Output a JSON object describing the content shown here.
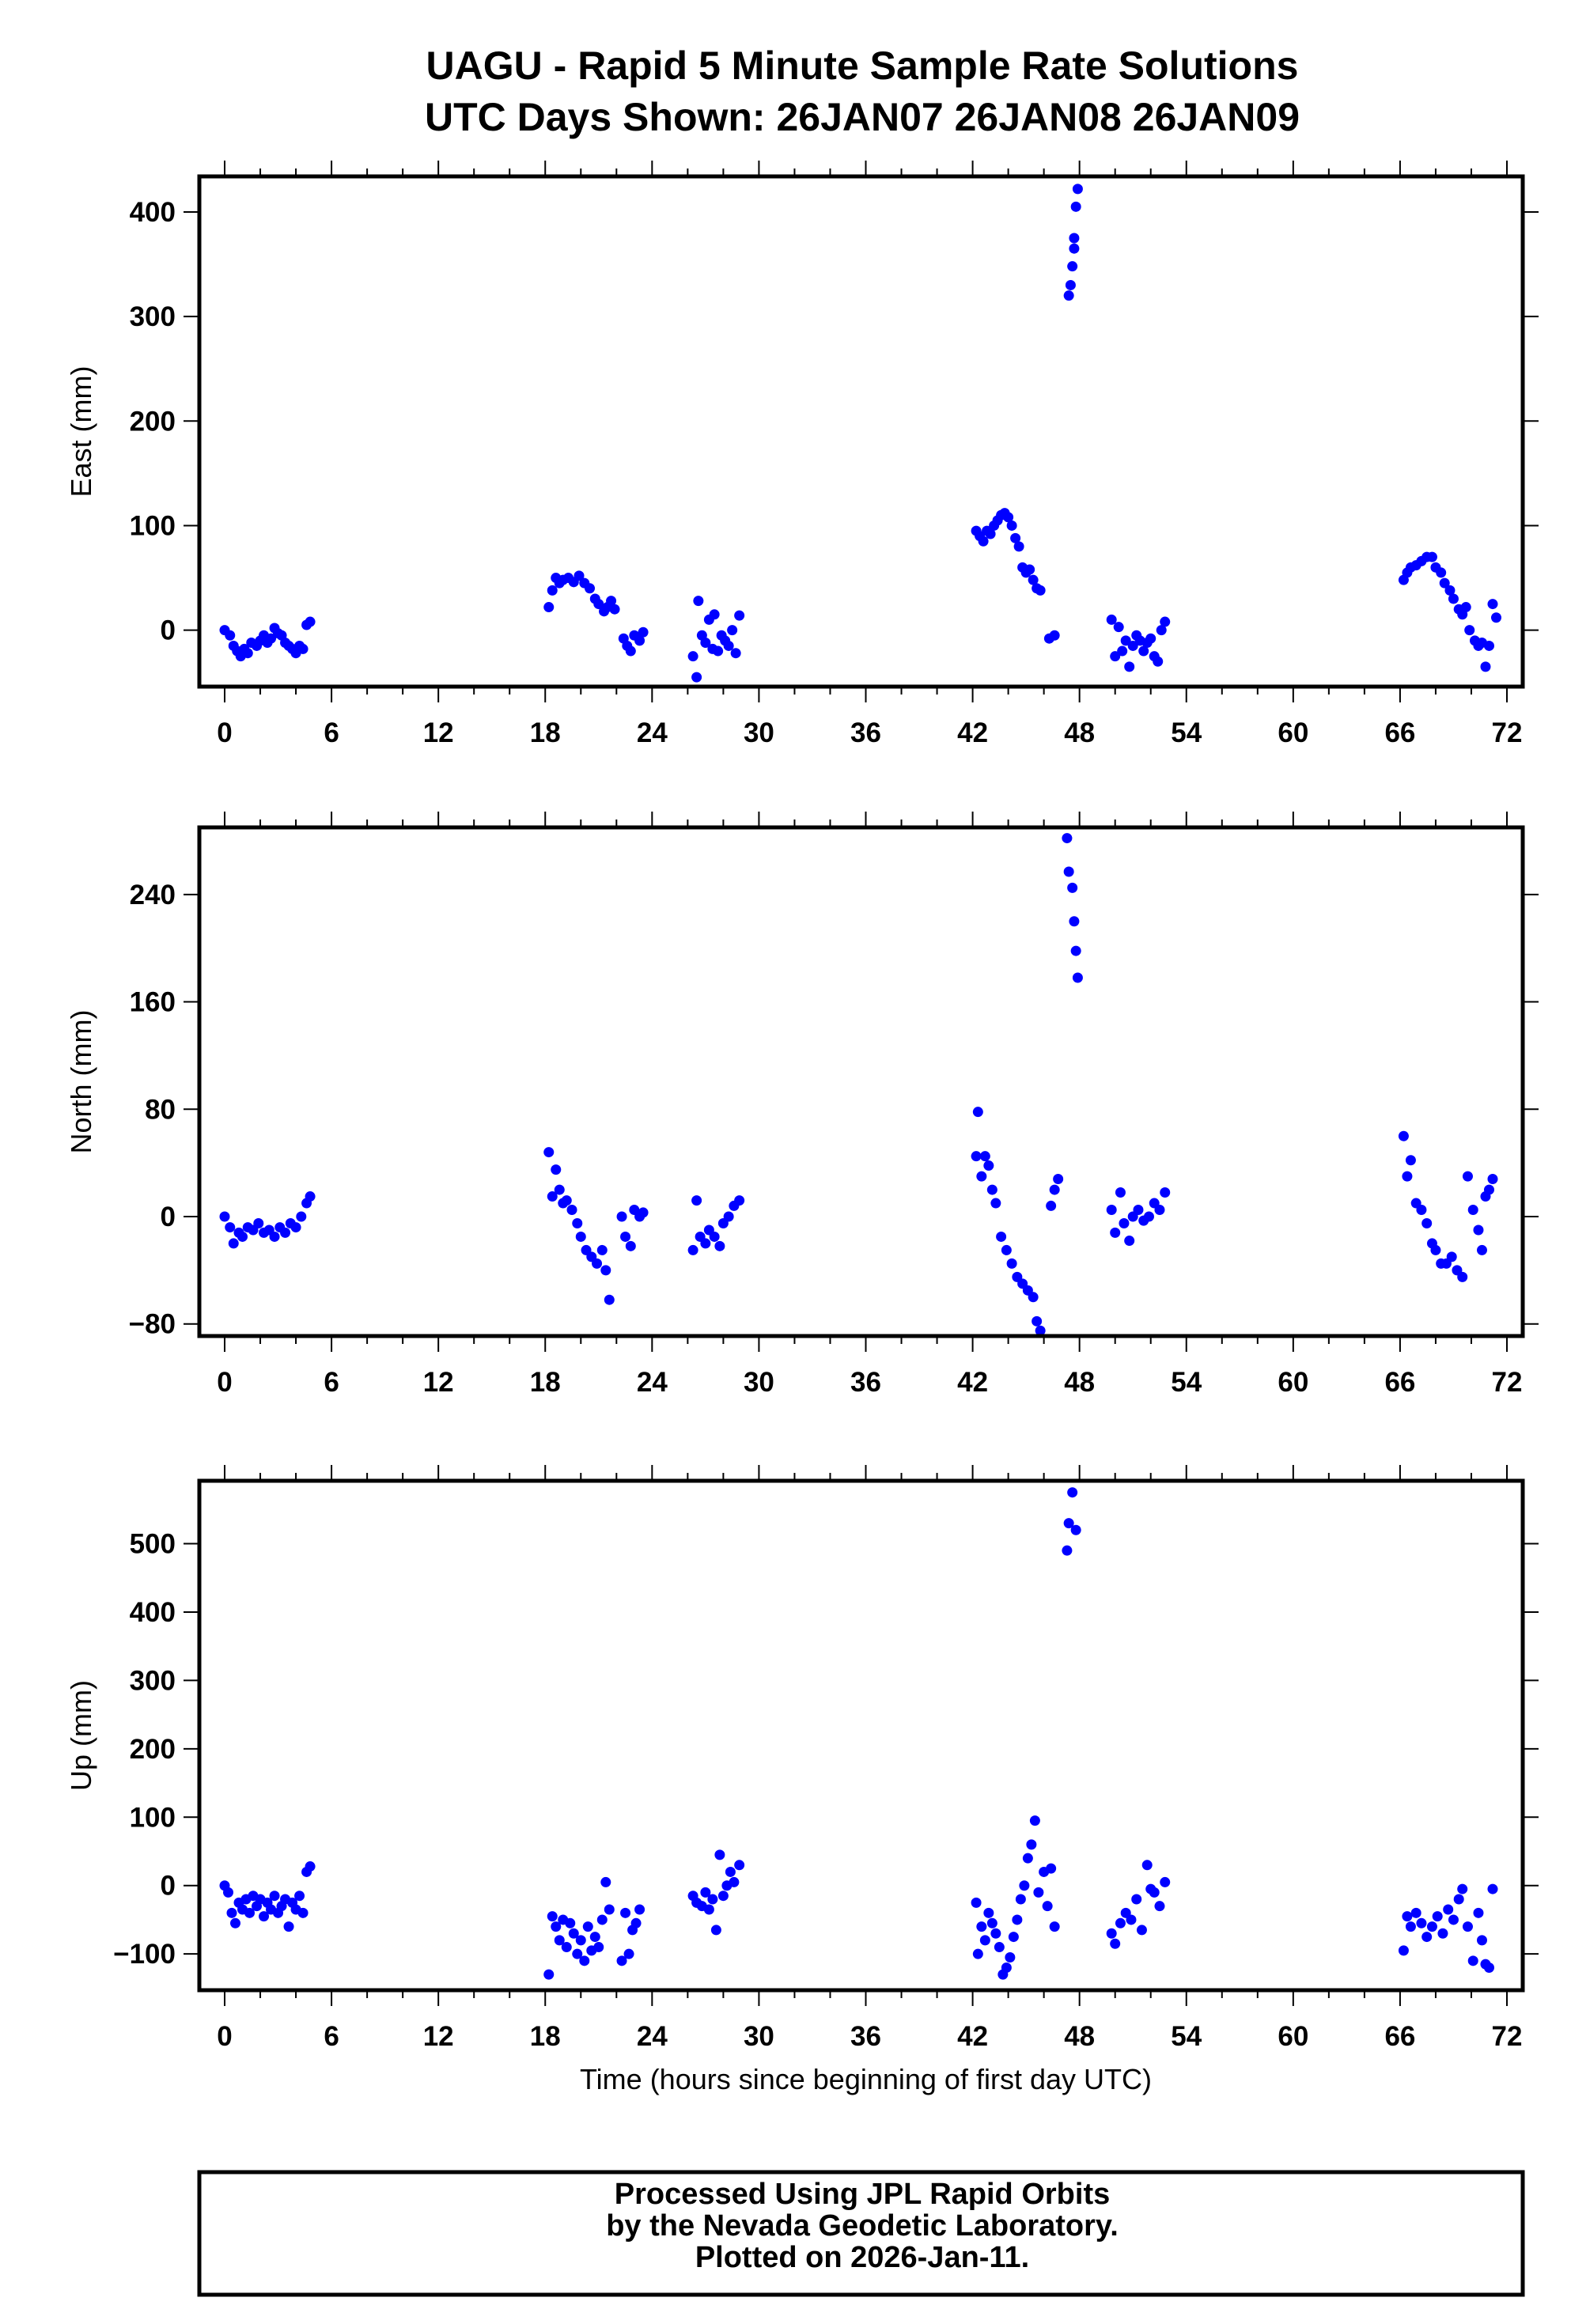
{
  "header": {
    "title_line1": "UAGU - Rapid 5 Minute Sample Rate Solutions",
    "title_line2": "UTC Days Shown:  26JAN07 26JAN08 26JAN09"
  },
  "footer": {
    "line1": "Processed Using JPL Rapid Orbits",
    "line2": "by the Nevada Geodetic Laboratory.",
    "line3": "Plotted on 2026-Jan-11."
  },
  "colors": {
    "points": "#0000ff",
    "axes": "#000000"
  },
  "chart_data": [
    {
      "type": "scatter",
      "title": "",
      "xlabel": "",
      "ylabel": "East (mm)",
      "xlim": [
        -1,
        73
      ],
      "ylim": [
        -54,
        434
      ],
      "xticks": [
        0,
        6,
        12,
        18,
        24,
        30,
        36,
        42,
        48,
        54,
        60,
        66,
        72
      ],
      "yticks": [
        0,
        100,
        200,
        300,
        400
      ],
      "points": [
        [
          0,
          0
        ],
        [
          0.3,
          -5
        ],
        [
          0.5,
          -15
        ],
        [
          0.7,
          -20
        ],
        [
          0.9,
          -25
        ],
        [
          1.1,
          -18
        ],
        [
          1.3,
          -22
        ],
        [
          1.5,
          -12
        ],
        [
          1.8,
          -15
        ],
        [
          2.0,
          -10
        ],
        [
          2.2,
          -5
        ],
        [
          2.4,
          -12
        ],
        [
          2.6,
          -8
        ],
        [
          2.8,
          2
        ],
        [
          3.0,
          -3
        ],
        [
          3.2,
          -5
        ],
        [
          3.4,
          -12
        ],
        [
          3.6,
          -15
        ],
        [
          3.8,
          -18
        ],
        [
          4.0,
          -22
        ],
        [
          4.2,
          -15
        ],
        [
          4.4,
          -18
        ],
        [
          4.6,
          5
        ],
        [
          4.8,
          8
        ],
        [
          18.2,
          22
        ],
        [
          18.4,
          38
        ],
        [
          18.6,
          50
        ],
        [
          18.8,
          45
        ],
        [
          19.0,
          48
        ],
        [
          19.3,
          50
        ],
        [
          19.6,
          46
        ],
        [
          19.9,
          52
        ],
        [
          20.2,
          45
        ],
        [
          20.5,
          40
        ],
        [
          20.8,
          30
        ],
        [
          21.0,
          25
        ],
        [
          21.3,
          18
        ],
        [
          21.5,
          22
        ],
        [
          21.7,
          28
        ],
        [
          21.9,
          20
        ],
        [
          22.4,
          -8
        ],
        [
          22.6,
          -15
        ],
        [
          22.8,
          -20
        ],
        [
          23.0,
          -5
        ],
        [
          23.3,
          -10
        ],
        [
          23.5,
          -2
        ],
        [
          26.3,
          -25
        ],
        [
          26.5,
          -45
        ],
        [
          26.6,
          28
        ],
        [
          26.8,
          -5
        ],
        [
          27.0,
          -12
        ],
        [
          27.2,
          10
        ],
        [
          27.4,
          -18
        ],
        [
          27.5,
          15
        ],
        [
          27.7,
          -20
        ],
        [
          27.9,
          -5
        ],
        [
          28.1,
          -10
        ],
        [
          28.3,
          -15
        ],
        [
          28.5,
          0
        ],
        [
          28.7,
          -22
        ],
        [
          28.9,
          14
        ],
        [
          42.2,
          95
        ],
        [
          42.4,
          90
        ],
        [
          42.6,
          85
        ],
        [
          42.8,
          95
        ],
        [
          43.0,
          92
        ],
        [
          43.2,
          100
        ],
        [
          43.4,
          105
        ],
        [
          43.6,
          110
        ],
        [
          43.8,
          112
        ],
        [
          44.0,
          108
        ],
        [
          44.2,
          100
        ],
        [
          44.4,
          88
        ],
        [
          44.6,
          80
        ],
        [
          44.8,
          60
        ],
        [
          45.0,
          55
        ],
        [
          45.2,
          58
        ],
        [
          45.4,
          48
        ],
        [
          45.6,
          40
        ],
        [
          45.8,
          38
        ],
        [
          46.3,
          -8
        ],
        [
          46.6,
          -5
        ],
        [
          47.4,
          320
        ],
        [
          47.5,
          330
        ],
        [
          47.6,
          348
        ],
        [
          47.7,
          365
        ],
        [
          47.7,
          375
        ],
        [
          47.8,
          405
        ],
        [
          47.9,
          422
        ],
        [
          49.8,
          10
        ],
        [
          50.0,
          -25
        ],
        [
          50.2,
          3
        ],
        [
          50.4,
          -20
        ],
        [
          50.6,
          -10
        ],
        [
          50.8,
          -35
        ],
        [
          51.0,
          -15
        ],
        [
          51.2,
          -5
        ],
        [
          51.4,
          -10
        ],
        [
          51.6,
          -20
        ],
        [
          51.8,
          -12
        ],
        [
          52.0,
          -8
        ],
        [
          52.2,
          -25
        ],
        [
          52.4,
          -30
        ],
        [
          52.6,
          0
        ],
        [
          52.8,
          8
        ],
        [
          66.2,
          48
        ],
        [
          66.4,
          55
        ],
        [
          66.6,
          60
        ],
        [
          66.9,
          62
        ],
        [
          67.2,
          66
        ],
        [
          67.5,
          70
        ],
        [
          67.8,
          70
        ],
        [
          68.0,
          60
        ],
        [
          68.3,
          55
        ],
        [
          68.5,
          45
        ],
        [
          68.8,
          38
        ],
        [
          69.0,
          30
        ],
        [
          69.3,
          20
        ],
        [
          69.5,
          15
        ],
        [
          69.7,
          22
        ],
        [
          69.9,
          0
        ],
        [
          70.2,
          -10
        ],
        [
          70.4,
          -15
        ],
        [
          70.6,
          -12
        ],
        [
          70.8,
          -35
        ],
        [
          71.0,
          -15
        ],
        [
          71.2,
          25
        ],
        [
          71.4,
          12
        ]
      ]
    },
    {
      "type": "scatter",
      "title": "",
      "xlabel": "",
      "ylabel": "North (mm)",
      "xlim": [
        -1,
        73
      ],
      "ylim": [
        -89,
        290
      ],
      "xticks": [
        0,
        6,
        12,
        18,
        24,
        30,
        36,
        42,
        48,
        54,
        60,
        66,
        72
      ],
      "yticks": [
        -80,
        0,
        80,
        160,
        240
      ],
      "points": [
        [
          0,
          0
        ],
        [
          0.3,
          -8
        ],
        [
          0.5,
          -20
        ],
        [
          0.8,
          -12
        ],
        [
          1.0,
          -15
        ],
        [
          1.3,
          -8
        ],
        [
          1.6,
          -10
        ],
        [
          1.9,
          -5
        ],
        [
          2.2,
          -12
        ],
        [
          2.5,
          -10
        ],
        [
          2.8,
          -15
        ],
        [
          3.1,
          -8
        ],
        [
          3.4,
          -12
        ],
        [
          3.7,
          -5
        ],
        [
          4.0,
          -8
        ],
        [
          4.3,
          0
        ],
        [
          4.6,
          10
        ],
        [
          4.8,
          15
        ],
        [
          18.2,
          48
        ],
        [
          18.4,
          15
        ],
        [
          18.6,
          35
        ],
        [
          18.8,
          20
        ],
        [
          19.0,
          10
        ],
        [
          19.2,
          12
        ],
        [
          19.5,
          5
        ],
        [
          19.8,
          -5
        ],
        [
          20.0,
          -15
        ],
        [
          20.3,
          -25
        ],
        [
          20.6,
          -30
        ],
        [
          20.9,
          -35
        ],
        [
          21.2,
          -25
        ],
        [
          21.4,
          -40
        ],
        [
          21.6,
          -62
        ],
        [
          22.3,
          0
        ],
        [
          22.5,
          -15
        ],
        [
          22.8,
          -22
        ],
        [
          23.0,
          5
        ],
        [
          23.3,
          0
        ],
        [
          23.5,
          3
        ],
        [
          26.3,
          -25
        ],
        [
          26.5,
          12
        ],
        [
          26.7,
          -15
        ],
        [
          27.0,
          -20
        ],
        [
          27.2,
          -10
        ],
        [
          27.5,
          -15
        ],
        [
          27.8,
          -22
        ],
        [
          28.0,
          -5
        ],
        [
          28.3,
          0
        ],
        [
          28.6,
          8
        ],
        [
          28.9,
          12
        ],
        [
          42.2,
          45
        ],
        [
          42.3,
          78
        ],
        [
          42.5,
          30
        ],
        [
          42.7,
          45
        ],
        [
          42.9,
          38
        ],
        [
          43.1,
          20
        ],
        [
          43.3,
          10
        ],
        [
          43.6,
          -15
        ],
        [
          43.9,
          -25
        ],
        [
          44.2,
          -35
        ],
        [
          44.5,
          -45
        ],
        [
          44.8,
          -50
        ],
        [
          45.1,
          -55
        ],
        [
          45.4,
          -60
        ],
        [
          45.6,
          -78
        ],
        [
          45.8,
          -85
        ],
        [
          46.4,
          8
        ],
        [
          46.6,
          20
        ],
        [
          46.8,
          28
        ],
        [
          47.3,
          282
        ],
        [
          47.4,
          257
        ],
        [
          47.6,
          245
        ],
        [
          47.7,
          220
        ],
        [
          47.8,
          198
        ],
        [
          47.9,
          178
        ],
        [
          49.8,
          5
        ],
        [
          50.0,
          -12
        ],
        [
          50.3,
          18
        ],
        [
          50.5,
          -5
        ],
        [
          50.8,
          -18
        ],
        [
          51.0,
          0
        ],
        [
          51.3,
          5
        ],
        [
          51.6,
          -3
        ],
        [
          51.9,
          0
        ],
        [
          52.2,
          10
        ],
        [
          52.5,
          5
        ],
        [
          52.8,
          18
        ],
        [
          66.2,
          60
        ],
        [
          66.4,
          30
        ],
        [
          66.6,
          42
        ],
        [
          66.9,
          10
        ],
        [
          67.2,
          5
        ],
        [
          67.5,
          -5
        ],
        [
          67.8,
          -20
        ],
        [
          68.0,
          -25
        ],
        [
          68.3,
          -35
        ],
        [
          68.6,
          -35
        ],
        [
          68.9,
          -30
        ],
        [
          69.2,
          -40
        ],
        [
          69.5,
          -45
        ],
        [
          69.8,
          30
        ],
        [
          70.1,
          5
        ],
        [
          70.4,
          -10
        ],
        [
          70.6,
          -25
        ],
        [
          70.8,
          15
        ],
        [
          71.0,
          20
        ],
        [
          71.2,
          28
        ]
      ]
    },
    {
      "type": "scatter",
      "title": "",
      "xlabel": "Time (hours since beginning of first day UTC)",
      "ylabel": "Up (mm)",
      "xlim": [
        -1,
        73
      ],
      "ylim": [
        -153,
        592
      ],
      "xticks": [
        0,
        6,
        12,
        18,
        24,
        30,
        36,
        42,
        48,
        54,
        60,
        66,
        72
      ],
      "yticks": [
        -100,
        0,
        100,
        200,
        300,
        400,
        500
      ],
      "points": [
        [
          0,
          0
        ],
        [
          0.2,
          -10
        ],
        [
          0.4,
          -40
        ],
        [
          0.6,
          -55
        ],
        [
          0.8,
          -25
        ],
        [
          1.0,
          -35
        ],
        [
          1.2,
          -20
        ],
        [
          1.4,
          -40
        ],
        [
          1.6,
          -15
        ],
        [
          1.8,
          -30
        ],
        [
          2.0,
          -20
        ],
        [
          2.2,
          -45
        ],
        [
          2.4,
          -25
        ],
        [
          2.6,
          -35
        ],
        [
          2.8,
          -15
        ],
        [
          3.0,
          -40
        ],
        [
          3.2,
          -30
        ],
        [
          3.4,
          -20
        ],
        [
          3.6,
          -60
        ],
        [
          3.8,
          -25
        ],
        [
          4.0,
          -35
        ],
        [
          4.2,
          -15
        ],
        [
          4.4,
          -40
        ],
        [
          4.6,
          20
        ],
        [
          4.8,
          28
        ],
        [
          18.2,
          -130
        ],
        [
          18.4,
          -45
        ],
        [
          18.6,
          -60
        ],
        [
          18.8,
          -80
        ],
        [
          19.0,
          -50
        ],
        [
          19.2,
          -90
        ],
        [
          19.4,
          -55
        ],
        [
          19.6,
          -70
        ],
        [
          19.8,
          -100
        ],
        [
          20.0,
          -80
        ],
        [
          20.2,
          -110
        ],
        [
          20.4,
          -60
        ],
        [
          20.6,
          -95
        ],
        [
          20.8,
          -75
        ],
        [
          21.0,
          -90
        ],
        [
          21.2,
          -50
        ],
        [
          21.4,
          5
        ],
        [
          21.6,
          -35
        ],
        [
          22.3,
          -110
        ],
        [
          22.5,
          -40
        ],
        [
          22.7,
          -100
        ],
        [
          22.9,
          -65
        ],
        [
          23.1,
          -55
        ],
        [
          23.3,
          -35
        ],
        [
          26.3,
          -15
        ],
        [
          26.5,
          -25
        ],
        [
          26.8,
          -30
        ],
        [
          27.0,
          -10
        ],
        [
          27.2,
          -35
        ],
        [
          27.4,
          -20
        ],
        [
          27.6,
          -65
        ],
        [
          27.8,
          45
        ],
        [
          28.0,
          -15
        ],
        [
          28.2,
          0
        ],
        [
          28.4,
          20
        ],
        [
          28.6,
          5
        ],
        [
          28.9,
          30
        ],
        [
          42.2,
          -25
        ],
        [
          42.3,
          -100
        ],
        [
          42.5,
          -60
        ],
        [
          42.7,
          -80
        ],
        [
          42.9,
          -40
        ],
        [
          43.1,
          -55
        ],
        [
          43.3,
          -70
        ],
        [
          43.5,
          -90
        ],
        [
          43.7,
          -130
        ],
        [
          43.9,
          -120
        ],
        [
          44.1,
          -105
        ],
        [
          44.3,
          -75
        ],
        [
          44.5,
          -50
        ],
        [
          44.7,
          -20
        ],
        [
          44.9,
          0
        ],
        [
          45.1,
          40
        ],
        [
          45.3,
          60
        ],
        [
          45.5,
          95
        ],
        [
          45.7,
          -10
        ],
        [
          46.0,
          20
        ],
        [
          46.2,
          -30
        ],
        [
          46.4,
          25
        ],
        [
          46.6,
          -60
        ],
        [
          47.3,
          490
        ],
        [
          47.4,
          530
        ],
        [
          47.6,
          575
        ],
        [
          47.8,
          520
        ],
        [
          49.8,
          -70
        ],
        [
          50.0,
          -85
        ],
        [
          50.3,
          -55
        ],
        [
          50.6,
          -40
        ],
        [
          50.9,
          -50
        ],
        [
          51.2,
          -20
        ],
        [
          51.5,
          -65
        ],
        [
          51.8,
          30
        ],
        [
          52.0,
          -5
        ],
        [
          52.2,
          -10
        ],
        [
          52.5,
          -30
        ],
        [
          52.8,
          5
        ],
        [
          66.2,
          -95
        ],
        [
          66.4,
          -45
        ],
        [
          66.6,
          -60
        ],
        [
          66.9,
          -40
        ],
        [
          67.2,
          -55
        ],
        [
          67.5,
          -75
        ],
        [
          67.8,
          -60
        ],
        [
          68.1,
          -45
        ],
        [
          68.4,
          -70
        ],
        [
          68.7,
          -35
        ],
        [
          69.0,
          -50
        ],
        [
          69.3,
          -20
        ],
        [
          69.5,
          -5
        ],
        [
          69.8,
          -60
        ],
        [
          70.1,
          -110
        ],
        [
          70.4,
          -40
        ],
        [
          70.6,
          -80
        ],
        [
          70.8,
          -115
        ],
        [
          71.0,
          -120
        ],
        [
          71.2,
          -5
        ]
      ]
    }
  ]
}
